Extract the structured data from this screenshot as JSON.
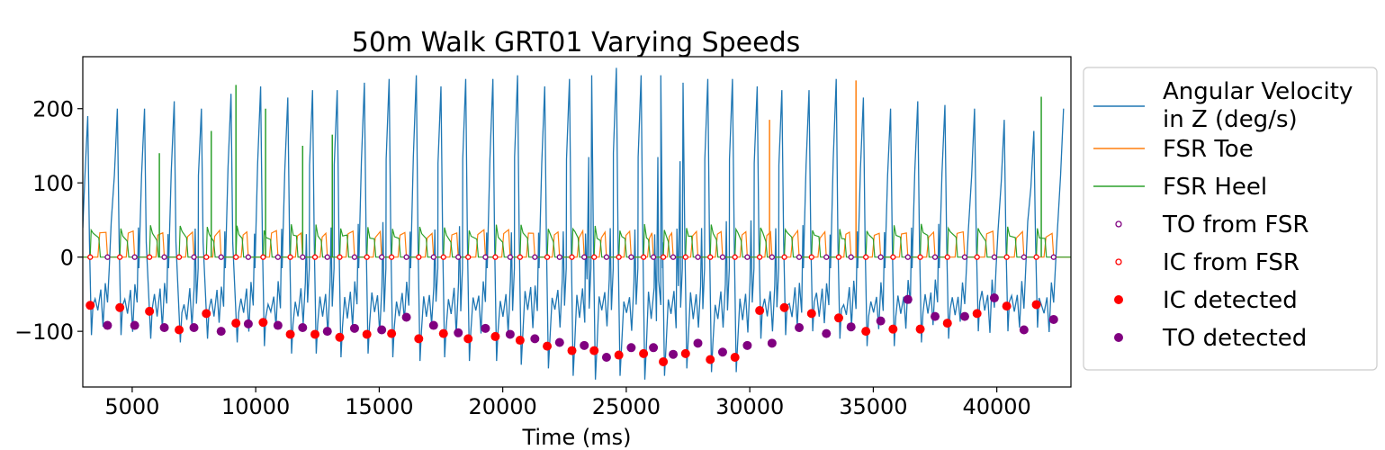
{
  "chart_data": {
    "type": "line",
    "title": "50m Walk GRT01 Varying Speeds",
    "xlabel": "Time (ms)",
    "ylabel": "",
    "xlim": [
      3000,
      43000
    ],
    "ylim": [
      -175,
      270
    ],
    "x_ticks": [
      5000,
      10000,
      15000,
      20000,
      25000,
      30000,
      35000,
      40000
    ],
    "x_tick_labels": [
      "5000",
      "10000",
      "15000",
      "20000",
      "25000",
      "30000",
      "35000",
      "40000"
    ],
    "y_ticks": [
      200,
      100,
      0,
      -100
    ],
    "y_tick_labels": [
      "200",
      "100",
      "0",
      "−100"
    ],
    "grid": false,
    "legend_placement": "outside-right",
    "legend": [
      {
        "label_line1": "Angular Velocity",
        "label_line2": " in Z (deg/s)",
        "kind": "line",
        "color": "#1f77b4"
      },
      {
        "label_line1": "FSR Toe",
        "label_line2": "",
        "kind": "line",
        "color": "#ff7f0e"
      },
      {
        "label_line1": "FSR Heel",
        "label_line2": "",
        "kind": "line",
        "color": "#2ca02c"
      },
      {
        "label_line1": "TO from FSR",
        "label_line2": "",
        "kind": "hollow",
        "color": "#800080"
      },
      {
        "label_line1": "IC from FSR",
        "label_line2": "",
        "kind": "hollow",
        "color": "#ff0000"
      },
      {
        "label_line1": "IC detected",
        "label_line2": "",
        "kind": "filled",
        "color": "#ff0000"
      },
      {
        "label_line1": "TO detected",
        "label_line2": "",
        "kind": "filled",
        "color": "#800080"
      }
    ],
    "ic_detected": [
      [
        3300,
        -65
      ],
      [
        4500,
        -68
      ],
      [
        5700,
        -73
      ],
      [
        6900,
        -98
      ],
      [
        8000,
        -76
      ],
      [
        9200,
        -89
      ],
      [
        10300,
        -88
      ],
      [
        11400,
        -104
      ],
      [
        12400,
        -104
      ],
      [
        13400,
        -108
      ],
      [
        14500,
        -104
      ],
      [
        15500,
        -103
      ],
      [
        16600,
        -110
      ],
      [
        17600,
        -103
      ],
      [
        18600,
        -110
      ],
      [
        19700,
        -107
      ],
      [
        20700,
        -112
      ],
      [
        21800,
        -120
      ],
      [
        22800,
        -126
      ],
      [
        23700,
        -126
      ],
      [
        24700,
        -132
      ],
      [
        25700,
        -130
      ],
      [
        26500,
        -141
      ],
      [
        27400,
        -130
      ],
      [
        28400,
        -138
      ],
      [
        29400,
        -135
      ],
      [
        30400,
        -72
      ],
      [
        31400,
        -68
      ],
      [
        32500,
        -76
      ],
      [
        33600,
        -82
      ],
      [
        34700,
        -100
      ],
      [
        35800,
        -97
      ],
      [
        36900,
        -97
      ],
      [
        38000,
        -89
      ],
      [
        39200,
        -76
      ],
      [
        40400,
        -66
      ],
      [
        41600,
        -64
      ]
    ],
    "to_detected": [
      [
        4000,
        -92
      ],
      [
        5100,
        -92
      ],
      [
        6300,
        -95
      ],
      [
        7500,
        -95
      ],
      [
        8600,
        -100
      ],
      [
        9700,
        -90
      ],
      [
        10900,
        -92
      ],
      [
        11900,
        -95
      ],
      [
        12900,
        -100
      ],
      [
        14000,
        -96
      ],
      [
        15100,
        -98
      ],
      [
        16100,
        -81
      ],
      [
        17200,
        -92
      ],
      [
        18200,
        -102
      ],
      [
        19300,
        -96
      ],
      [
        20300,
        -104
      ],
      [
        21300,
        -110
      ],
      [
        22300,
        -115
      ],
      [
        23300,
        -119
      ],
      [
        24200,
        -135
      ],
      [
        25200,
        -122
      ],
      [
        26100,
        -122
      ],
      [
        26900,
        -131
      ],
      [
        27900,
        -116
      ],
      [
        28900,
        -128
      ],
      [
        29900,
        -119
      ],
      [
        30900,
        -116
      ],
      [
        32000,
        -95
      ],
      [
        33100,
        -103
      ],
      [
        34100,
        -94
      ],
      [
        35300,
        -86
      ],
      [
        36400,
        -57
      ],
      [
        37500,
        -80
      ],
      [
        38700,
        -80
      ],
      [
        39900,
        -55
      ],
      [
        41100,
        -98
      ],
      [
        42300,
        -84
      ]
    ],
    "to_fsr": [
      [
        4000,
        0
      ],
      [
        5100,
        0
      ],
      [
        6300,
        0
      ],
      [
        7500,
        0
      ],
      [
        8600,
        0
      ],
      [
        9700,
        0
      ],
      [
        10900,
        0
      ],
      [
        11900,
        0
      ],
      [
        12900,
        0
      ],
      [
        14000,
        0
      ],
      [
        15100,
        0
      ],
      [
        16100,
        0
      ],
      [
        17200,
        0
      ],
      [
        18200,
        0
      ],
      [
        19300,
        0
      ],
      [
        20300,
        0
      ],
      [
        21300,
        0
      ],
      [
        22300,
        0
      ],
      [
        23300,
        0
      ],
      [
        24200,
        0
      ],
      [
        25200,
        0
      ],
      [
        26100,
        0
      ],
      [
        26900,
        0
      ],
      [
        27900,
        0
      ],
      [
        28900,
        0
      ],
      [
        29900,
        0
      ],
      [
        30900,
        0
      ],
      [
        32000,
        0
      ],
      [
        33100,
        0
      ],
      [
        34100,
        0
      ],
      [
        35300,
        0
      ],
      [
        36400,
        0
      ],
      [
        37500,
        0
      ],
      [
        38700,
        0
      ],
      [
        39900,
        0
      ],
      [
        41100,
        0
      ],
      [
        42300,
        0
      ]
    ],
    "ic_fsr": [
      [
        3300,
        0
      ],
      [
        4500,
        0
      ],
      [
        5700,
        0
      ],
      [
        6900,
        0
      ],
      [
        8000,
        0
      ],
      [
        9200,
        0
      ],
      [
        10300,
        0
      ],
      [
        11400,
        0
      ],
      [
        12400,
        0
      ],
      [
        13400,
        0
      ],
      [
        14500,
        0
      ],
      [
        15500,
        0
      ],
      [
        16600,
        0
      ],
      [
        17600,
        0
      ],
      [
        18600,
        0
      ],
      [
        19700,
        0
      ],
      [
        20700,
        0
      ],
      [
        21800,
        0
      ],
      [
        22800,
        0
      ],
      [
        23700,
        0
      ],
      [
        24700,
        0
      ],
      [
        25700,
        0
      ],
      [
        26500,
        0
      ],
      [
        27400,
        0
      ],
      [
        28400,
        0
      ],
      [
        29400,
        0
      ],
      [
        30400,
        0
      ],
      [
        31400,
        0
      ],
      [
        32500,
        0
      ],
      [
        33600,
        0
      ],
      [
        34700,
        0
      ],
      [
        35800,
        0
      ],
      [
        36900,
        0
      ],
      [
        38000,
        0
      ],
      [
        39200,
        0
      ],
      [
        40400,
        0
      ],
      [
        41600,
        0
      ]
    ],
    "angular_velocity_peaks": [
      [
        3200,
        190
      ],
      [
        4400,
        200
      ],
      [
        5500,
        200
      ],
      [
        6700,
        210
      ],
      [
        7800,
        200
      ],
      [
        9000,
        220
      ],
      [
        10200,
        230
      ],
      [
        11300,
        215
      ],
      [
        12300,
        225
      ],
      [
        13300,
        225
      ],
      [
        14400,
        235
      ],
      [
        15400,
        240
      ],
      [
        16500,
        245
      ],
      [
        17500,
        230
      ],
      [
        18500,
        240
      ],
      [
        19600,
        240
      ],
      [
        20600,
        245
      ],
      [
        21700,
        230
      ],
      [
        22700,
        240
      ],
      [
        23600,
        245
      ],
      [
        24600,
        255
      ],
      [
        25600,
        245
      ],
      [
        26400,
        245
      ],
      [
        27300,
        235
      ],
      [
        28300,
        240
      ],
      [
        29300,
        240
      ],
      [
        30300,
        230
      ],
      [
        31300,
        225
      ],
      [
        32400,
        225
      ],
      [
        33500,
        240
      ],
      [
        34600,
        215
      ],
      [
        35700,
        200
      ],
      [
        36800,
        210
      ],
      [
        37900,
        205
      ],
      [
        39100,
        200
      ],
      [
        40300,
        185
      ],
      [
        41500,
        170
      ],
      [
        42700,
        200
      ]
    ],
    "angular_velocity_minima": [
      [
        3350,
        -105
      ],
      [
        4550,
        -105
      ],
      [
        5750,
        -110
      ],
      [
        6950,
        -115
      ],
      [
        8050,
        -110
      ],
      [
        9250,
        -115
      ],
      [
        10350,
        -120
      ],
      [
        11450,
        -130
      ],
      [
        12450,
        -130
      ],
      [
        13450,
        -135
      ],
      [
        14550,
        -130
      ],
      [
        15550,
        -135
      ],
      [
        16650,
        -140
      ],
      [
        17650,
        -135
      ],
      [
        18650,
        -140
      ],
      [
        19750,
        -140
      ],
      [
        20750,
        -145
      ],
      [
        21850,
        -150
      ],
      [
        22850,
        -160
      ],
      [
        23750,
        -165
      ],
      [
        24750,
        -160
      ],
      [
        25750,
        -165
      ],
      [
        26550,
        -160
      ],
      [
        27450,
        -150
      ],
      [
        28450,
        -155
      ],
      [
        29450,
        -155
      ],
      [
        30450,
        -110
      ],
      [
        31450,
        -105
      ],
      [
        32550,
        -100
      ],
      [
        33650,
        -110
      ],
      [
        34750,
        -120
      ],
      [
        35850,
        -120
      ],
      [
        36950,
        -115
      ],
      [
        38050,
        -110
      ],
      [
        39250,
        -100
      ],
      [
        40450,
        -100
      ],
      [
        41650,
        -95
      ]
    ],
    "fsr_toe_spikes": [
      [
        30800,
        185
      ],
      [
        34300,
        238
      ]
    ],
    "fsr_heel_spikes": [
      [
        6100,
        140
      ],
      [
        8200,
        170
      ],
      [
        9200,
        232
      ],
      [
        10400,
        200
      ],
      [
        11900,
        150
      ],
      [
        13100,
        165
      ],
      [
        41800,
        216
      ]
    ]
  }
}
